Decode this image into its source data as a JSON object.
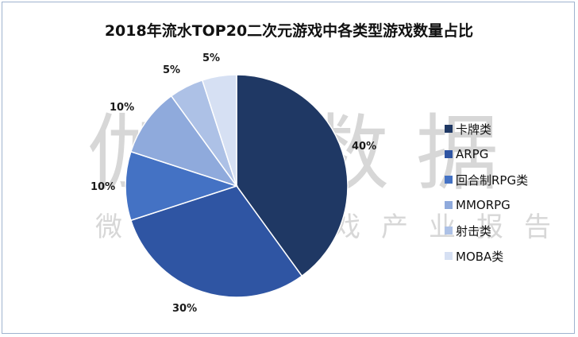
{
  "chart_data": {
    "type": "pie",
    "title": "2018年流水TOP20二次元游戏中各类型游戏数量占比",
    "legend_position": "right",
    "slices": [
      {
        "name": "卡牌类",
        "value": 40,
        "label": "40%",
        "color": "#1f3864"
      },
      {
        "name": "ARPG",
        "value": 30,
        "label": "30%",
        "color": "#2f55a3"
      },
      {
        "name": "回合制RPG类",
        "value": 10,
        "label": "10%",
        "color": "#4472c4"
      },
      {
        "name": "MMORPG",
        "value": 10,
        "label": "10%",
        "color": "#8faadc"
      },
      {
        "name": "射击类",
        "value": 5,
        "label": "5%",
        "color": "#adc1e6"
      },
      {
        "name": "MOBA类",
        "value": 5,
        "label": "5%",
        "color": "#d6e0f3"
      }
    ]
  },
  "watermark": {
    "main": "伽马数据",
    "sub": "微信号：游戏产业报告"
  }
}
